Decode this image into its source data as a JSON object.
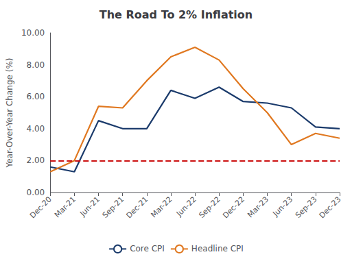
{
  "chart_data": {
    "type": "line",
    "title": "The Road To 2% Inflation",
    "ylabel": "Year-Over-Year Change (%)",
    "categories": [
      "Dec-20",
      "Mar-21",
      "Jun-21",
      "Sep-21",
      "Dec-21",
      "Mar-22",
      "Jun-22",
      "Sep-22",
      "Dec-22",
      "Mar-23",
      "Jun-23",
      "Sep-23",
      "Dec-23"
    ],
    "series": [
      {
        "name": "Core CPI",
        "color": "#1a3a6b",
        "values": [
          1.6,
          1.3,
          4.5,
          4.0,
          4.0,
          6.4,
          5.9,
          6.6,
          5.7,
          5.6,
          5.3,
          4.1,
          4.0
        ]
      },
      {
        "name": "Headline CPI",
        "color": "#e07820",
        "values": [
          1.3,
          2.0,
          5.4,
          5.3,
          7.0,
          8.5,
          9.1,
          8.3,
          6.5,
          5.0,
          3.0,
          3.7,
          3.4
        ]
      }
    ],
    "hlines": [
      {
        "y": 2.0,
        "color": "#cc1111",
        "line_style": "dashed"
      }
    ],
    "ylim": [
      0.0,
      10.0
    ],
    "yticks": [
      {
        "value": 0.0,
        "label": "0.00"
      },
      {
        "value": 2.0,
        "label": "2.00"
      },
      {
        "value": 4.0,
        "label": "4.00"
      },
      {
        "value": 6.0,
        "label": "6.00"
      },
      {
        "value": 8.0,
        "label": "8.00"
      },
      {
        "value": 10.0,
        "label": "10.00"
      }
    ],
    "grid": false,
    "legend": "bottom"
  }
}
